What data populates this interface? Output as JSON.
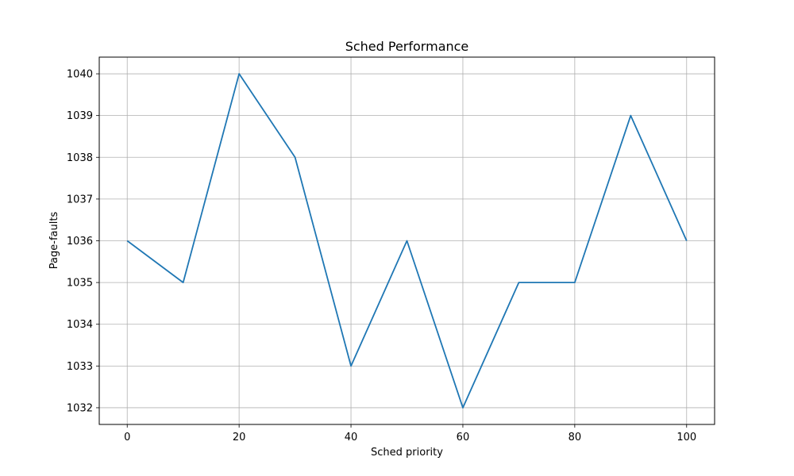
{
  "chart_data": {
    "type": "line",
    "title": "Sched Performance",
    "xlabel": "Sched priority",
    "ylabel": "Page-faults",
    "x": [
      0,
      10,
      20,
      30,
      40,
      50,
      60,
      70,
      80,
      90,
      100
    ],
    "series": [
      {
        "values": [
          1036,
          1035,
          1040,
          1038,
          1033,
          1036,
          1032,
          1035,
          1035,
          1039,
          1036
        ],
        "color": "#1f77b4"
      }
    ],
    "xlim": [
      -5,
      105
    ],
    "ylim": [
      1031.6,
      1040.4
    ],
    "xticks": [
      0,
      20,
      40,
      60,
      80,
      100
    ],
    "yticks": [
      1032,
      1033,
      1034,
      1035,
      1036,
      1037,
      1038,
      1039,
      1040
    ],
    "grid": true,
    "legend": false
  }
}
